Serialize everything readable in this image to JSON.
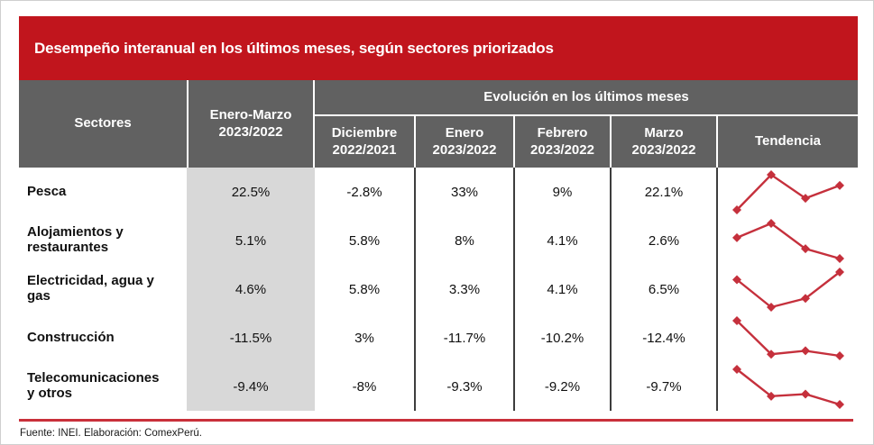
{
  "title": "Desempeño interanual en los últimos meses, según sectores priorizados",
  "colors": {
    "title_bar_red": "#C1151D",
    "header_gray": "#616161",
    "highlight_column_gray": "#D8D8D8",
    "sparkline_red": "#C5303C",
    "footer_line_red": "#C9303A"
  },
  "header": {
    "sectors_label": "Sectores",
    "period_line1": "Enero-Marzo",
    "period_line2": "2023/2022",
    "evolution_label": "Evolución en los últimos meses",
    "months": [
      {
        "line1": "Diciembre",
        "line2": "2022/2021"
      },
      {
        "line1": "Enero",
        "line2": "2023/2022"
      },
      {
        "line1": "Febrero",
        "line2": "2023/2022"
      },
      {
        "line1": "Marzo",
        "line2": "2023/2022"
      }
    ],
    "trend_label": "Tendencia"
  },
  "rows": [
    {
      "sector": "Pesca",
      "period": "22.5%",
      "months": [
        "-2.8%",
        "33%",
        "9%",
        "22.1%"
      ],
      "trend_values": [
        -2.8,
        33,
        9,
        22.1
      ]
    },
    {
      "sector": "Alojamientos y restaurantes",
      "period": "5.1%",
      "months": [
        "5.8%",
        "8%",
        "4.1%",
        "2.6%"
      ],
      "trend_values": [
        5.8,
        8,
        4.1,
        2.6
      ]
    },
    {
      "sector": "Electricidad, agua y gas",
      "period": "4.6%",
      "months": [
        "5.8%",
        "3.3%",
        "4.1%",
        "6.5%"
      ],
      "trend_values": [
        5.8,
        3.3,
        4.1,
        6.5
      ]
    },
    {
      "sector": "Construcción",
      "period": "-11.5%",
      "months": [
        "3%",
        "-11.7%",
        "-10.2%",
        "-12.4%"
      ],
      "trend_values": [
        3,
        -11.7,
        -10.2,
        -12.4
      ]
    },
    {
      "sector": "Telecomunicaciones y otros",
      "period": "-9.4%",
      "months": [
        "-8%",
        "-9.3%",
        "-9.2%",
        "-9.7%"
      ],
      "trend_values": [
        -8,
        -9.3,
        -9.2,
        -9.7
      ]
    }
  ],
  "footer": "Fuente: INEI. Elaboración: ComexPerú.",
  "chart_data": {
    "type": "table",
    "title": "Desempeño interanual en los últimos meses, según sectores priorizados",
    "units": "%",
    "columns": [
      "Sectores",
      "Enero-Marzo 2023/2022",
      "Diciembre 2022/2021",
      "Enero 2023/2022",
      "Febrero 2023/2022",
      "Marzo 2023/2022",
      "Tendencia"
    ],
    "rows": [
      {
        "sector": "Pesca",
        "enero_marzo": 22.5,
        "monthly": [
          -2.8,
          33,
          9,
          22.1
        ]
      },
      {
        "sector": "Alojamientos y restaurantes",
        "enero_marzo": 5.1,
        "monthly": [
          5.8,
          8,
          4.1,
          2.6
        ]
      },
      {
        "sector": "Electricidad, agua y gas",
        "enero_marzo": 4.6,
        "monthly": [
          5.8,
          3.3,
          4.1,
          6.5
        ]
      },
      {
        "sector": "Construcción",
        "enero_marzo": -11.5,
        "monthly": [
          3,
          -11.7,
          -10.2,
          -12.4
        ]
      },
      {
        "sector": "Telecomunicaciones y otros",
        "enero_marzo": -9.4,
        "monthly": [
          -8,
          -9.3,
          -9.2,
          -9.7
        ]
      }
    ],
    "sparkline_note": "Tendencia column draws a red line chart with diamond markers of the four monthly values, min-max normalized per row",
    "source": "Fuente: INEI. Elaboración: ComexPerú."
  }
}
